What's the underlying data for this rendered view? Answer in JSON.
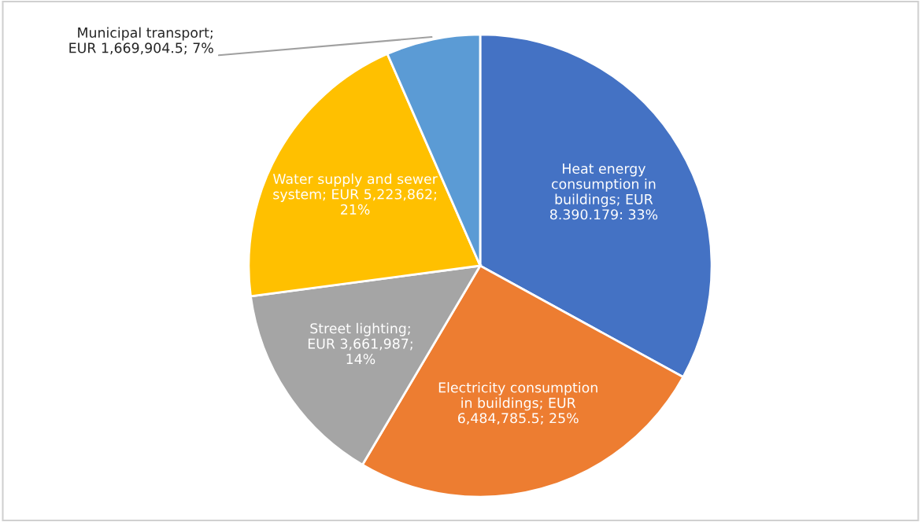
{
  "chart_data": {
    "type": "pie",
    "categories": [
      "Heat energy\nconsumption in\nbuildings",
      "Electricity consumption\nin buildings",
      "Street lighting",
      "Water supply and sewer\nsystem",
      "Municipal transport"
    ],
    "values": [
      8390179,
      6484785.5,
      3661987,
      5223862,
      1669904.5
    ],
    "colors": [
      "#4472c4",
      "#ed7d31",
      "#a5a5a5",
      "#ffc000",
      "#5b9bd5"
    ],
    "value_labels": [
      "; EUR\n8.390.179: 33%",
      "; EUR\n6,484,785.5; 25%",
      ";\nEUR 3,661,987;\n14%",
      "; EUR 5,223,862;\n21%",
      ";\nEUR 1,669,904.5; 7%"
    ],
    "legend": false
  }
}
